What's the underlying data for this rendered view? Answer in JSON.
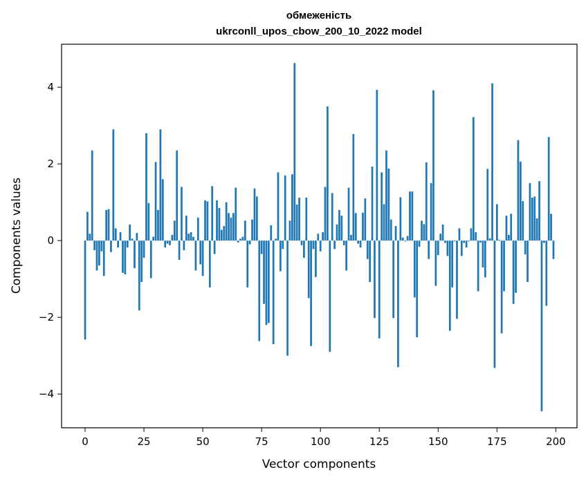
{
  "chart_data": {
    "type": "bar",
    "title_line1": "обмеженість",
    "title_line2": "ukrconll_upos_cbow_200_10_2022 model",
    "xlabel": "Vector components",
    "ylabel": "Components values",
    "xlim": [
      -10,
      209
    ],
    "ylim": [
      -4.88,
      5.12
    ],
    "xticks": [
      0,
      25,
      50,
      75,
      100,
      125,
      150,
      175,
      200
    ],
    "yticks": [
      -4,
      -2,
      0,
      2,
      4
    ],
    "ytick_labels": [
      "−4",
      "−2",
      "0",
      "2",
      "4"
    ],
    "grid": false,
    "bar_color": "#1f77b4",
    "x": [
      0,
      1,
      2,
      3,
      4,
      5,
      6,
      7,
      8,
      9,
      10,
      11,
      12,
      13,
      14,
      15,
      16,
      17,
      18,
      19,
      20,
      21,
      22,
      23,
      24,
      25,
      26,
      27,
      28,
      29,
      30,
      31,
      32,
      33,
      34,
      35,
      36,
      37,
      38,
      39,
      40,
      41,
      42,
      43,
      44,
      45,
      46,
      47,
      48,
      49,
      50,
      51,
      52,
      53,
      54,
      55,
      56,
      57,
      58,
      59,
      60,
      61,
      62,
      63,
      64,
      65,
      66,
      67,
      68,
      69,
      70,
      71,
      72,
      73,
      74,
      75,
      76,
      77,
      78,
      79,
      80,
      81,
      82,
      83,
      84,
      85,
      86,
      87,
      88,
      89,
      90,
      91,
      92,
      93,
      94,
      95,
      96,
      97,
      98,
      99,
      100,
      101,
      102,
      103,
      104,
      105,
      106,
      107,
      108,
      109,
      110,
      111,
      112,
      113,
      114,
      115,
      116,
      117,
      118,
      119,
      120,
      121,
      122,
      123,
      124,
      125,
      126,
      127,
      128,
      129,
      130,
      131,
      132,
      133,
      134,
      135,
      136,
      137,
      138,
      139,
      140,
      141,
      142,
      143,
      144,
      145,
      146,
      147,
      148,
      149,
      150,
      151,
      152,
      153,
      154,
      155,
      156,
      157,
      158,
      159,
      160,
      161,
      162,
      163,
      164,
      165,
      166,
      167,
      168,
      169,
      170,
      171,
      172,
      173,
      174,
      175,
      176,
      177,
      178,
      179,
      180,
      181,
      182,
      183,
      184,
      185,
      186,
      187,
      188,
      189,
      190,
      191,
      192,
      193,
      194,
      195,
      196,
      197,
      198,
      199
    ],
    "values": [
      -2.58,
      0.75,
      0.18,
      2.35,
      -0.25,
      -0.78,
      -0.65,
      -0.28,
      -0.92,
      0.8,
      0.82,
      -0.3,
      2.9,
      0.32,
      -0.18,
      0.22,
      -0.84,
      -0.88,
      -0.18,
      0.42,
      0.05,
      -0.72,
      0.2,
      -1.82,
      -1.08,
      -0.45,
      2.8,
      0.98,
      -0.98,
      0.1,
      2.05,
      0.8,
      2.9,
      1.6,
      -0.18,
      -0.08,
      -0.12,
      0.15,
      0.52,
      2.35,
      -0.5,
      1.4,
      -0.25,
      0.65,
      0.18,
      0.22,
      0.1,
      -0.78,
      0.6,
      -0.62,
      -0.92,
      1.05,
      1.02,
      -1.22,
      1.42,
      -0.35,
      1.05,
      0.85,
      0.28,
      0.38,
      1.0,
      0.72,
      0.6,
      0.72,
      1.38,
      -0.05,
      0.05,
      0.1,
      0.52,
      -1.22,
      -0.1,
      0.55,
      1.36,
      1.15,
      -2.62,
      -0.35,
      -1.65,
      -2.2,
      -2.15,
      0.4,
      -2.7,
      0.05,
      1.78,
      -0.8,
      -0.22,
      1.7,
      -3.0,
      0.52,
      1.73,
      4.63,
      0.94,
      1.12,
      -0.12,
      -0.45,
      1.12,
      -1.5,
      -2.75,
      -0.22,
      -0.95,
      0.18,
      -0.28,
      0.22,
      1.4,
      3.5,
      -2.9,
      1.24,
      -0.22,
      0.42,
      0.8,
      0.65,
      -0.12,
      -0.78,
      1.38,
      0.15,
      2.78,
      0.72,
      -0.08,
      -0.18,
      0.73,
      1.1,
      -0.48,
      -1.08,
      1.93,
      -2.02,
      3.93,
      -2.55,
      1.78,
      0.95,
      2.35,
      1.88,
      0.55,
      -2.02,
      0.38,
      -3.3,
      1.13,
      0.08,
      -0.02,
      0.12,
      1.28,
      1.28,
      -1.48,
      -2.52,
      -0.16,
      0.52,
      0.43,
      2.04,
      -0.48,
      1.5,
      3.92,
      -1.18,
      -0.38,
      0.18,
      0.42,
      -0.06,
      -0.4,
      -2.35,
      -1.22,
      -0.02,
      -2.04,
      0.32,
      -0.4,
      -0.06,
      -0.18,
      -0.02,
      0.32,
      3.22,
      0.22,
      -1.32,
      -0.05,
      -0.7,
      -0.96,
      1.87,
      0.06,
      4.1,
      -3.32,
      0.95,
      0.02,
      -2.42,
      -1.32,
      0.65,
      0.15,
      0.7,
      -1.65,
      -1.36,
      2.62,
      2.06,
      1.03,
      -0.36,
      -1.08,
      1.5,
      1.12,
      1.15,
      0.58,
      1.55,
      -4.45,
      -0.06,
      -1.7,
      2.7,
      0.7,
      -0.48
    ]
  }
}
